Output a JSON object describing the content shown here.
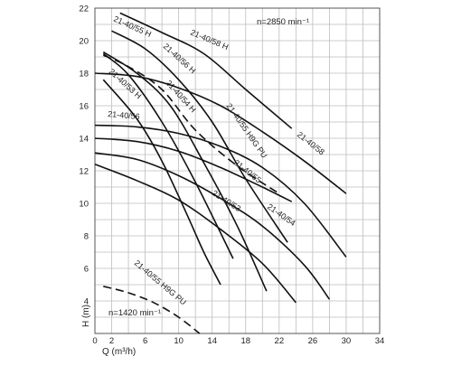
{
  "chart_data": {
    "type": "line",
    "title": "",
    "xlabel": "Q (m³/h)",
    "ylabel": "H (m)",
    "xlim": [
      0,
      34
    ],
    "ylim": [
      2,
      22
    ],
    "x_ticks": [
      0,
      2,
      6,
      10,
      14,
      18,
      22,
      26,
      30,
      34
    ],
    "y_ticks": [
      4,
      6,
      8,
      10,
      12,
      14,
      16,
      18,
      20,
      22
    ],
    "grid": true,
    "annotations": [
      "n=2850 min⁻¹",
      "n=1420 min⁻¹"
    ],
    "series": [
      {
        "name": "21-40/58 H",
        "style": "solid",
        "x": [
          3,
          8,
          13,
          18,
          23.5
        ],
        "y": [
          21.7,
          20.5,
          19.2,
          17.0,
          14.6
        ]
      },
      {
        "name": "21-40/55 H",
        "style": "solid",
        "x": [
          2,
          6,
          10,
          14,
          18,
          23
        ],
        "y": [
          20.6,
          19.5,
          17.6,
          15.0,
          11.5,
          7.6
        ]
      },
      {
        "name": "21-40/56 H",
        "style": "solid",
        "x": [
          1,
          5,
          9,
          13,
          17,
          20.5
        ],
        "y": [
          19.3,
          18.0,
          16.0,
          12.5,
          8.6,
          4.6
        ]
      },
      {
        "name": "21-40/55 H9G PU",
        "style": "dashed",
        "x": [
          1,
          4,
          8,
          12,
          17,
          22
        ],
        "y": [
          19.1,
          18.4,
          17.0,
          14.5,
          12.3,
          10.6
        ]
      },
      {
        "name": "21-40/58",
        "style": "solid",
        "x": [
          0,
          5,
          10,
          15,
          20,
          25,
          30
        ],
        "y": [
          18.0,
          17.8,
          17.1,
          16.0,
          14.4,
          12.6,
          10.6
        ]
      },
      {
        "name": "21-40/53 H",
        "style": "solid",
        "x": [
          1,
          5,
          8,
          11,
          13,
          15
        ],
        "y": [
          17.6,
          15.2,
          12.6,
          9.3,
          7.0,
          5.0
        ]
      },
      {
        "name": "21-40/54 H",
        "style": "solid",
        "x": [
          1,
          4,
          8,
          12,
          16.5
        ],
        "y": [
          19.2,
          17.9,
          15.0,
          11.3,
          6.6
        ]
      },
      {
        "name": "21-40/56",
        "style": "solid",
        "x": [
          0,
          5,
          10,
          15,
          20,
          23.5
        ],
        "y": [
          14.0,
          13.8,
          13.2,
          12.2,
          11.0,
          10.1
        ]
      },
      {
        "name": "21-40/55",
        "style": "solid",
        "x": [
          0,
          5,
          10,
          15,
          20,
          25,
          30
        ],
        "y": [
          14.8,
          14.7,
          14.3,
          13.5,
          12.2,
          10.0,
          6.7
        ]
      },
      {
        "name": "21-40/54",
        "style": "solid",
        "x": [
          0,
          5,
          10,
          15,
          20,
          25,
          28
        ],
        "y": [
          13.1,
          12.7,
          11.7,
          10.3,
          8.6,
          6.2,
          4.1
        ]
      },
      {
        "name": "21-40/53",
        "style": "solid",
        "x": [
          0,
          5,
          10,
          15,
          20,
          24
        ],
        "y": [
          12.4,
          11.4,
          10.2,
          8.4,
          6.3,
          3.9
        ]
      },
      {
        "name": "21-40/55 H9G PU",
        "style": "dashed",
        "x": [
          1,
          4,
          7,
          10,
          12.5
        ],
        "y": [
          4.9,
          4.5,
          3.9,
          3.0,
          2.0
        ]
      }
    ],
    "label_names": {
      "l58H": "21-40/58 H",
      "l55H": "21-40/55 H",
      "l56H": "21-40/56 H",
      "lPU": "21-40/55 H9G PU",
      "l58": "21-40/58",
      "l53H": "21-40/53 H",
      "l54H": "21-40/54 H",
      "l56": "21-40/56",
      "l55": "21-40/55",
      "l54": "21-40/54",
      "l53": "21-40/53",
      "lPUlow": "21-40/55 H9G PU"
    },
    "labels": {
      "n_high": "n=2850 min⁻¹",
      "n_low": "n=1420 min⁻¹",
      "ylabel": "H (m)",
      "xlabel": "Q (m³/h)"
    }
  }
}
